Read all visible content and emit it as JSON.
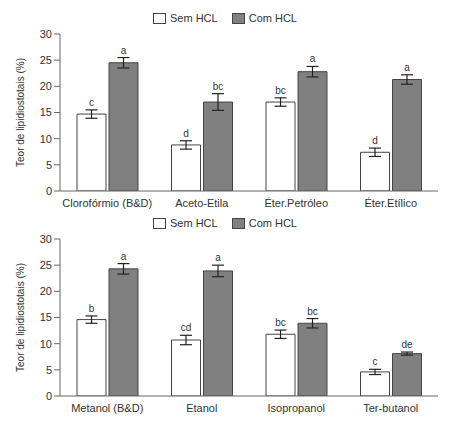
{
  "chart_data": [
    {
      "type": "bar",
      "y_label": "Teor de lipidiostotais (%)",
      "legend": "top",
      "categories": [
        "Clorofórmio (B&D)",
        "Aceto-Etila",
        "Éter.Petróleo",
        "Éter.Etílico"
      ],
      "series": [
        {
          "name": "Sem HCL",
          "color": "#ffffff",
          "values": [
            14.7,
            8.8,
            17.0,
            7.4
          ],
          "errors": [
            0.8,
            0.8,
            0.8,
            0.8
          ],
          "letters": [
            "c",
            "d",
            "bc",
            "d"
          ]
        },
        {
          "name": "Com HCL",
          "color": "#808080",
          "values": [
            24.5,
            17.0,
            22.8,
            21.3
          ],
          "errors": [
            1.0,
            1.6,
            1.0,
            0.9
          ],
          "letters": [
            "a",
            "bc",
            "a",
            "a"
          ]
        }
      ],
      "ylim": [
        0,
        30
      ],
      "yticks": [
        0,
        5,
        10,
        15,
        20,
        25,
        30
      ]
    },
    {
      "type": "bar",
      "y_label": "Teor de lipidiostotais (%)",
      "legend": "top",
      "categories": [
        "Metanol (B&D)",
        "Etanol",
        "Isopropanol",
        "Ter-butanol"
      ],
      "series": [
        {
          "name": "Sem HCL",
          "color": "#ffffff",
          "values": [
            14.6,
            10.7,
            11.8,
            4.6
          ],
          "errors": [
            0.7,
            0.9,
            0.8,
            0.5
          ],
          "letters": [
            "b",
            "cd",
            "bc",
            "c"
          ]
        },
        {
          "name": "Com HCL",
          "color": "#808080",
          "values": [
            24.3,
            23.9,
            13.9,
            8.1
          ],
          "errors": [
            1.0,
            1.1,
            0.9,
            0.3
          ],
          "letters": [
            "a",
            "a",
            "bc",
            "de"
          ]
        }
      ],
      "ylim": [
        0,
        30
      ],
      "yticks": [
        0,
        5,
        10,
        15,
        20,
        25,
        30
      ]
    }
  ]
}
